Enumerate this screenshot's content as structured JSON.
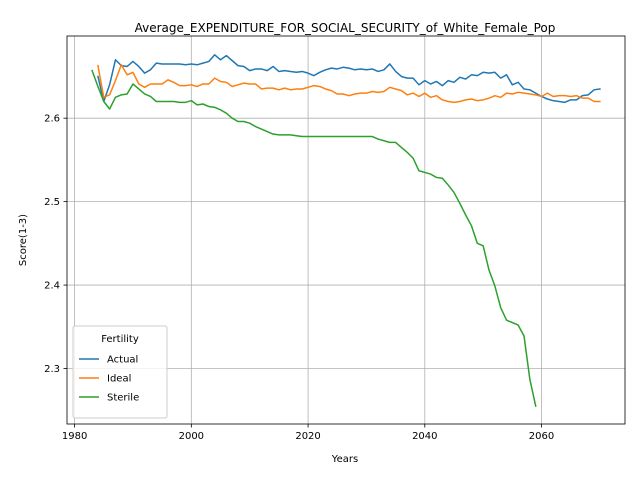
{
  "chart_data": {
    "type": "line",
    "title": "Average_EXPENDITURE_FOR_SOCIAL_SECURITY_of_White_Female_Pop",
    "xlabel": "Years",
    "ylabel": "Score(1-3)",
    "xlim": [
      1978.7,
      2074.3
    ],
    "ylim": [
      2.2335,
      2.6985
    ],
    "x_ticks": [
      1980,
      2000,
      2020,
      2040,
      2060
    ],
    "y_ticks": [
      2.3,
      2.4,
      2.5,
      2.6
    ],
    "x_tick_labels": [
      "1980",
      "2000",
      "2020",
      "2040",
      "2060"
    ],
    "y_tick_labels": [
      "2.3",
      "2.4",
      "2.5",
      "2.6"
    ],
    "grid": true,
    "legend": {
      "title": "Fertility",
      "placement": "lower-left"
    },
    "series": [
      {
        "name": "Actual",
        "color": "#1f77b4",
        "points": [
          [
            1984,
            2.65
          ],
          [
            1985,
            2.62
          ],
          [
            1986,
            2.64
          ],
          [
            1987,
            2.67
          ],
          [
            1988,
            2.663
          ],
          [
            1989,
            2.662
          ],
          [
            1990,
            2.668
          ],
          [
            1991,
            2.662
          ],
          [
            1992,
            2.654
          ],
          [
            1993,
            2.658
          ],
          [
            1994,
            2.666
          ],
          [
            1995,
            2.665
          ],
          [
            1996,
            2.665
          ],
          [
            1997,
            2.665
          ],
          [
            1998,
            2.665
          ],
          [
            1999,
            2.664
          ],
          [
            2000,
            2.665
          ],
          [
            2001,
            2.664
          ],
          [
            2002,
            2.666
          ],
          [
            2003,
            2.668
          ],
          [
            2004,
            2.676
          ],
          [
            2005,
            2.67
          ],
          [
            2006,
            2.675
          ],
          [
            2007,
            2.669
          ],
          [
            2008,
            2.663
          ],
          [
            2009,
            2.662
          ],
          [
            2010,
            2.657
          ],
          [
            2011,
            2.659
          ],
          [
            2012,
            2.659
          ],
          [
            2013,
            2.657
          ],
          [
            2014,
            2.662
          ],
          [
            2015,
            2.656
          ],
          [
            2016,
            2.657
          ],
          [
            2017,
            2.656
          ],
          [
            2018,
            2.655
          ],
          [
            2019,
            2.656
          ],
          [
            2020,
            2.654
          ],
          [
            2021,
            2.651
          ],
          [
            2022,
            2.655
          ],
          [
            2023,
            2.658
          ],
          [
            2024,
            2.66
          ],
          [
            2025,
            2.659
          ],
          [
            2026,
            2.661
          ],
          [
            2027,
            2.66
          ],
          [
            2028,
            2.658
          ],
          [
            2029,
            2.659
          ],
          [
            2030,
            2.658
          ],
          [
            2031,
            2.659
          ],
          [
            2032,
            2.656
          ],
          [
            2033,
            2.658
          ],
          [
            2034,
            2.665
          ],
          [
            2035,
            2.656
          ],
          [
            2036,
            2.65
          ],
          [
            2037,
            2.648
          ],
          [
            2038,
            2.648
          ],
          [
            2039,
            2.64
          ],
          [
            2040,
            2.645
          ],
          [
            2041,
            2.641
          ],
          [
            2042,
            2.644
          ],
          [
            2043,
            2.639
          ],
          [
            2044,
            2.645
          ],
          [
            2045,
            2.643
          ],
          [
            2046,
            2.649
          ],
          [
            2047,
            2.647
          ],
          [
            2048,
            2.652
          ],
          [
            2049,
            2.651
          ],
          [
            2050,
            2.655
          ],
          [
            2051,
            2.654
          ],
          [
            2052,
            2.655
          ],
          [
            2053,
            2.648
          ],
          [
            2054,
            2.652
          ],
          [
            2055,
            2.64
          ],
          [
            2056,
            2.643
          ],
          [
            2057,
            2.635
          ],
          [
            2058,
            2.634
          ],
          [
            2059,
            2.63
          ],
          [
            2060,
            2.626
          ],
          [
            2061,
            2.623
          ],
          [
            2062,
            2.621
          ],
          [
            2063,
            2.62
          ],
          [
            2064,
            2.619
          ],
          [
            2065,
            2.622
          ],
          [
            2066,
            2.622
          ],
          [
            2067,
            2.627
          ],
          [
            2068,
            2.628
          ],
          [
            2069,
            2.634
          ],
          [
            2070,
            2.635
          ]
        ]
      },
      {
        "name": "Ideal",
        "color": "#ff7f0e",
        "points": [
          [
            1984,
            2.663
          ],
          [
            1985,
            2.625
          ],
          [
            1986,
            2.628
          ],
          [
            1987,
            2.645
          ],
          [
            1988,
            2.664
          ],
          [
            1989,
            2.652
          ],
          [
            1990,
            2.655
          ],
          [
            1991,
            2.641
          ],
          [
            1992,
            2.637
          ],
          [
            1993,
            2.641
          ],
          [
            1994,
            2.641
          ],
          [
            1995,
            2.641
          ],
          [
            1996,
            2.646
          ],
          [
            1997,
            2.643
          ],
          [
            1998,
            2.639
          ],
          [
            1999,
            2.639
          ],
          [
            2000,
            2.64
          ],
          [
            2001,
            2.638
          ],
          [
            2002,
            2.641
          ],
          [
            2003,
            2.641
          ],
          [
            2004,
            2.648
          ],
          [
            2005,
            2.644
          ],
          [
            2006,
            2.643
          ],
          [
            2007,
            2.638
          ],
          [
            2008,
            2.64
          ],
          [
            2009,
            2.642
          ],
          [
            2010,
            2.641
          ],
          [
            2011,
            2.641
          ],
          [
            2012,
            2.635
          ],
          [
            2013,
            2.636
          ],
          [
            2014,
            2.636
          ],
          [
            2015,
            2.634
          ],
          [
            2016,
            2.636
          ],
          [
            2017,
            2.634
          ],
          [
            2018,
            2.635
          ],
          [
            2019,
            2.635
          ],
          [
            2020,
            2.637
          ],
          [
            2021,
            2.639
          ],
          [
            2022,
            2.638
          ],
          [
            2023,
            2.635
          ],
          [
            2024,
            2.633
          ],
          [
            2025,
            2.629
          ],
          [
            2026,
            2.629
          ],
          [
            2027,
            2.627
          ],
          [
            2028,
            2.629
          ],
          [
            2029,
            2.63
          ],
          [
            2030,
            2.63
          ],
          [
            2031,
            2.632
          ],
          [
            2032,
            2.631
          ],
          [
            2033,
            2.632
          ],
          [
            2034,
            2.637
          ],
          [
            2035,
            2.635
          ],
          [
            2036,
            2.633
          ],
          [
            2037,
            2.628
          ],
          [
            2038,
            2.63
          ],
          [
            2039,
            2.626
          ],
          [
            2040,
            2.63
          ],
          [
            2041,
            2.625
          ],
          [
            2042,
            2.627
          ],
          [
            2043,
            2.622
          ],
          [
            2044,
            2.62
          ],
          [
            2045,
            2.619
          ],
          [
            2046,
            2.62
          ],
          [
            2047,
            2.622
          ],
          [
            2048,
            2.623
          ],
          [
            2049,
            2.621
          ],
          [
            2050,
            2.622
          ],
          [
            2051,
            2.624
          ],
          [
            2052,
            2.627
          ],
          [
            2053,
            2.625
          ],
          [
            2054,
            2.63
          ],
          [
            2055,
            2.629
          ],
          [
            2056,
            2.631
          ],
          [
            2057,
            2.63
          ],
          [
            2058,
            2.629
          ],
          [
            2059,
            2.628
          ],
          [
            2060,
            2.626
          ],
          [
            2061,
            2.63
          ],
          [
            2062,
            2.626
          ],
          [
            2063,
            2.627
          ],
          [
            2064,
            2.627
          ],
          [
            2065,
            2.626
          ],
          [
            2066,
            2.627
          ],
          [
            2067,
            2.624
          ],
          [
            2068,
            2.624
          ],
          [
            2069,
            2.62
          ],
          [
            2070,
            2.62
          ]
        ]
      },
      {
        "name": "Sterile",
        "color": "#2ca02c",
        "points": [
          [
            1983,
            2.657
          ],
          [
            1984,
            2.638
          ],
          [
            1985,
            2.62
          ],
          [
            1986,
            2.611
          ],
          [
            1987,
            2.625
          ],
          [
            1988,
            2.628
          ],
          [
            1989,
            2.629
          ],
          [
            1990,
            2.641
          ],
          [
            1991,
            2.635
          ],
          [
            1992,
            2.629
          ],
          [
            1993,
            2.626
          ],
          [
            1994,
            2.62
          ],
          [
            1995,
            2.62
          ],
          [
            1996,
            2.62
          ],
          [
            1997,
            2.62
          ],
          [
            1998,
            2.619
          ],
          [
            1999,
            2.619
          ],
          [
            2000,
            2.621
          ],
          [
            2001,
            2.616
          ],
          [
            2002,
            2.617
          ],
          [
            2003,
            2.614
          ],
          [
            2004,
            2.613
          ],
          [
            2005,
            2.61
          ],
          [
            2006,
            2.606
          ],
          [
            2007,
            2.6
          ],
          [
            2008,
            2.596
          ],
          [
            2009,
            2.596
          ],
          [
            2010,
            2.594
          ],
          [
            2011,
            2.59
          ],
          [
            2012,
            2.587
          ],
          [
            2013,
            2.584
          ],
          [
            2014,
            2.581
          ],
          [
            2015,
            2.58
          ],
          [
            2016,
            2.58
          ],
          [
            2017,
            2.58
          ],
          [
            2018,
            2.579
          ],
          [
            2019,
            2.578
          ],
          [
            2020,
            2.578
          ],
          [
            2021,
            2.578
          ],
          [
            2022,
            2.578
          ],
          [
            2023,
            2.578
          ],
          [
            2024,
            2.578
          ],
          [
            2025,
            2.578
          ],
          [
            2026,
            2.578
          ],
          [
            2027,
            2.578
          ],
          [
            2028,
            2.578
          ],
          [
            2029,
            2.578
          ],
          [
            2030,
            2.578
          ],
          [
            2031,
            2.578
          ],
          [
            2032,
            2.575
          ],
          [
            2033,
            2.573
          ],
          [
            2034,
            2.571
          ],
          [
            2035,
            2.571
          ],
          [
            2036,
            2.565
          ],
          [
            2037,
            2.559
          ],
          [
            2038,
            2.552
          ],
          [
            2039,
            2.537
          ],
          [
            2040,
            2.535
          ],
          [
            2041,
            2.533
          ],
          [
            2042,
            2.529
          ],
          [
            2043,
            2.528
          ],
          [
            2044,
            2.52
          ],
          [
            2045,
            2.511
          ],
          [
            2046,
            2.498
          ],
          [
            2047,
            2.484
          ],
          [
            2048,
            2.471
          ],
          [
            2049,
            2.45
          ],
          [
            2050,
            2.447
          ],
          [
            2051,
            2.418
          ],
          [
            2052,
            2.399
          ],
          [
            2053,
            2.373
          ],
          [
            2054,
            2.358
          ],
          [
            2055,
            2.355
          ],
          [
            2056,
            2.352
          ],
          [
            2057,
            2.339
          ],
          [
            2058,
            2.287
          ],
          [
            2059,
            2.255
          ]
        ]
      }
    ]
  }
}
